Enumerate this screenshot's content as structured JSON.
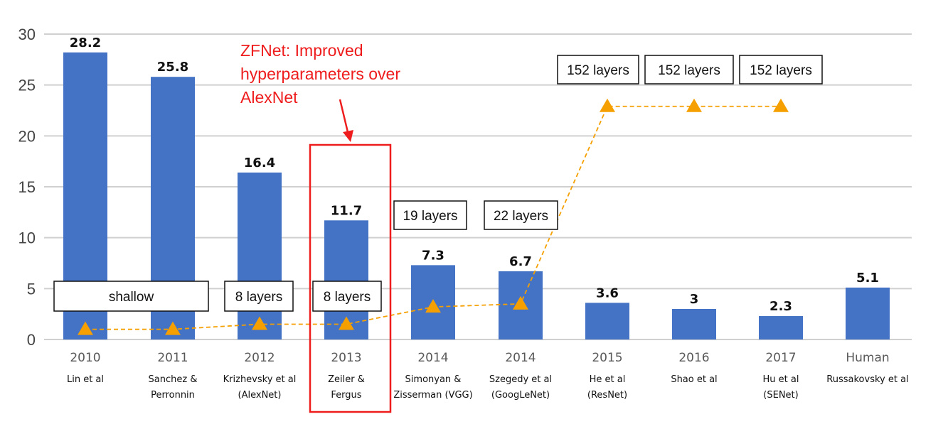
{
  "chart_data": {
    "type": "bar",
    "ylim": [
      0,
      30
    ],
    "yticks": [
      0,
      5,
      10,
      15,
      20,
      25,
      30
    ],
    "grid": true,
    "categories": [
      {
        "year": "2010",
        "author": [
          "Lin et al"
        ]
      },
      {
        "year": "2011",
        "author": [
          "Sanchez &",
          "Perronnin"
        ]
      },
      {
        "year": "2012",
        "author": [
          "Krizhevsky et al",
          "(AlexNet)"
        ]
      },
      {
        "year": "2013",
        "author": [
          "Zeiler &",
          "Fergus"
        ]
      },
      {
        "year": "2014",
        "author": [
          "Simonyan &",
          "Zisserman (VGG)"
        ]
      },
      {
        "year": "2014",
        "author": [
          "Szegedy et al",
          "(GoogLeNet)"
        ]
      },
      {
        "year": "2015",
        "author": [
          "He et al",
          "(ResNet)"
        ]
      },
      {
        "year": "2016",
        "author": [
          "Shao et al"
        ]
      },
      {
        "year": "2017",
        "author": [
          "Hu et al",
          "(SENet)"
        ]
      },
      {
        "year": "Human",
        "author": [
          "Russakovsky et al"
        ]
      }
    ],
    "values": [
      28.2,
      25.8,
      16.4,
      11.7,
      7.3,
      6.7,
      3.6,
      3,
      2.3,
      5.1
    ],
    "value_labels": [
      "28.2",
      "25.8",
      "16.4",
      "11.7",
      "7.3",
      "6.7",
      "3.6",
      "3",
      "2.3",
      "5.1"
    ],
    "depth_series": {
      "values": [
        1,
        1,
        1.5,
        1.5,
        3.2,
        3.5,
        22.9,
        22.9,
        22.9
      ]
    },
    "layer_boxes": [
      "shallow",
      "8 layers",
      "8 layers",
      "19 layers",
      "22 layers",
      "152 layers",
      "152 layers",
      "152 layers"
    ],
    "annotation": {
      "lines": [
        "ZFNet: Improved",
        "hyperparameters over",
        "AlexNet"
      ],
      "highlight_category": 3
    },
    "colors": {
      "bar": "#4472c4",
      "depth": "#f5a000",
      "annotation": "#ee1c1c",
      "grid": "#d0d0d0"
    }
  }
}
